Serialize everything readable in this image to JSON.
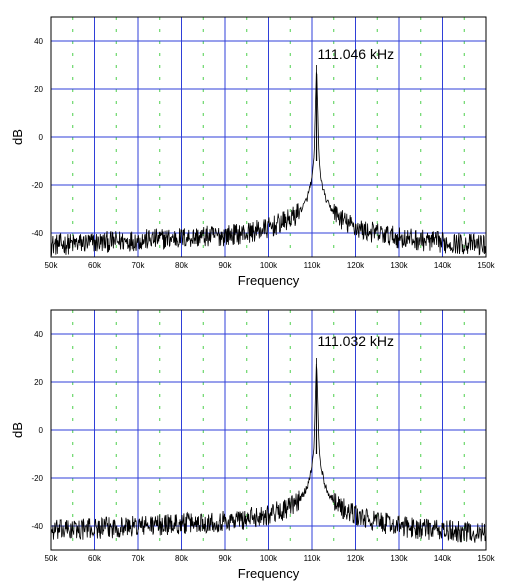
{
  "chart_data": [
    {
      "type": "line",
      "xlabel": "Frequency",
      "ylabel": "dB",
      "xlim": [
        50,
        150
      ],
      "ylim": [
        -50,
        50
      ],
      "x_ticks": [
        "50k",
        "60k",
        "70k",
        "80k",
        "90k",
        "100k",
        "110k",
        "120k",
        "130k",
        "140k",
        "150k"
      ],
      "y_ticks": [
        "40",
        "20",
        "0",
        "-20",
        "-40"
      ],
      "y_tick_values": [
        40,
        20,
        0,
        -20,
        -40
      ],
      "grid": true,
      "annotation": "111.046 kHz",
      "peak_khz": 111.046,
      "peak_db": 30,
      "series": [
        {
          "values_x_khz": [
            50,
            60,
            70,
            80,
            90,
            95,
            100,
            104,
            106,
            108,
            109,
            110,
            110.5,
            111.046,
            111.6,
            112,
            113,
            114,
            116,
            118,
            122,
            130,
            140,
            150
          ],
          "values_db": [
            -45,
            -44,
            -43,
            -42,
            -41,
            -40,
            -38,
            -35,
            -33,
            -29,
            -25,
            -17,
            -8,
            30,
            -8,
            -17,
            -25,
            -29,
            -33,
            -36,
            -39,
            -42,
            -44,
            -45
          ]
        }
      ]
    },
    {
      "type": "line",
      "xlabel": "Frequency",
      "ylabel": "dB",
      "xlim": [
        50,
        150
      ],
      "ylim": [
        -50,
        50
      ],
      "x_ticks": [
        "50k",
        "60k",
        "70k",
        "80k",
        "90k",
        "100k",
        "110k",
        "120k",
        "130k",
        "140k",
        "150k"
      ],
      "y_ticks": [
        "40",
        "20",
        "0",
        "-20",
        "-40"
      ],
      "y_tick_values": [
        40,
        20,
        0,
        -20,
        -40
      ],
      "grid": true,
      "annotation": "111.032 kHz",
      "peak_khz": 111.032,
      "peak_db": 30,
      "series": [
        {
          "values_x_khz": [
            50,
            60,
            70,
            80,
            90,
            95,
            100,
            104,
            106,
            108,
            109,
            110,
            110.5,
            111.032,
            111.6,
            112,
            113,
            114,
            116,
            118,
            122,
            130,
            140,
            150
          ],
          "values_db": [
            -42,
            -41,
            -40,
            -39,
            -38,
            -37,
            -35,
            -33,
            -31,
            -27,
            -23,
            -15,
            -6,
            30,
            -6,
            -15,
            -23,
            -27,
            -31,
            -34,
            -37,
            -40,
            -42,
            -43
          ]
        }
      ]
    }
  ]
}
